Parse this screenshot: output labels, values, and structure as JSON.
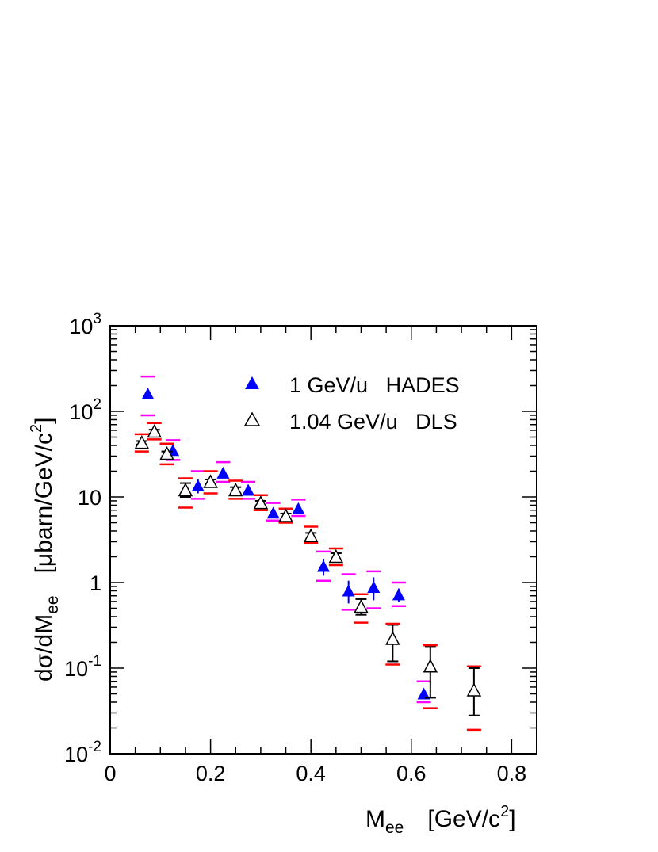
{
  "chart_data": {
    "type": "scatter",
    "title": "",
    "xlabel": "M",
    "xlabel_sub": "ee",
    "xlabel_unit": "[GeV/c",
    "xlabel_unit_sup": "2",
    "xlabel_unit_end": "]",
    "ylabel": "dσ/dM",
    "ylabel_sub": "ee",
    "ylabel_unit": "[μbarn/GeV/c",
    "ylabel_unit_sup": "2",
    "ylabel_unit_end": "]",
    "xlim": [
      0,
      0.85
    ],
    "ylim": [
      0.01,
      1000
    ],
    "yscale": "log",
    "grid": false,
    "legend_position": "top-right",
    "x_ticks": [
      "0",
      "0.2",
      "0.4",
      "0.6",
      "0.8"
    ],
    "x_tick_values": [
      0,
      0.2,
      0.4,
      0.6,
      0.8
    ],
    "y_ticks": [
      {
        "value": 1000,
        "base": "10",
        "sup": "3"
      },
      {
        "value": 100,
        "base": "10",
        "sup": "2"
      },
      {
        "value": 10,
        "base": "10",
        "sup": ""
      },
      {
        "value": 1,
        "base": "1",
        "sup": ""
      },
      {
        "value": 0.1,
        "base": "10",
        "sup": "-1"
      },
      {
        "value": 0.01,
        "base": "10",
        "sup": "-2"
      }
    ],
    "colors": {
      "hades": "#0000ff",
      "dls": "#000000",
      "hades_sys": "#ff00ff",
      "dls_sys": "#ff0000"
    },
    "series": [
      {
        "name": "1 GeV/u   HADES",
        "marker": "filled-triangle",
        "points": [
          {
            "x": 0.075,
            "y": 160,
            "stat_lo": 160,
            "stat_hi": 160,
            "sys_lo": 90,
            "sys_hi": 255
          },
          {
            "x": 0.125,
            "y": 35,
            "stat_lo": 31,
            "stat_hi": 39,
            "sys_lo": 27,
            "sys_hi": 46
          },
          {
            "x": 0.175,
            "y": 13.5,
            "stat_lo": 11,
            "stat_hi": 16,
            "sys_lo": 9.5,
            "sys_hi": 20
          },
          {
            "x": 0.225,
            "y": 19,
            "stat_lo": 17,
            "stat_hi": 21,
            "sys_lo": 15,
            "sys_hi": 25.5
          },
          {
            "x": 0.275,
            "y": 12,
            "stat_lo": 11,
            "stat_hi": 13,
            "sys_lo": 9.5,
            "sys_hi": 15
          },
          {
            "x": 0.325,
            "y": 6.5,
            "stat_lo": 6,
            "stat_hi": 7,
            "sys_lo": 5.3,
            "sys_hi": 8.5
          },
          {
            "x": 0.375,
            "y": 7.3,
            "stat_lo": 6.7,
            "stat_hi": 8,
            "sys_lo": 6,
            "sys_hi": 9.3
          },
          {
            "x": 0.425,
            "y": 1.55,
            "stat_lo": 1.2,
            "stat_hi": 1.9,
            "sys_lo": 1.05,
            "sys_hi": 2.3
          },
          {
            "x": 0.475,
            "y": 0.8,
            "stat_lo": 0.57,
            "stat_hi": 1.05,
            "sys_lo": 0.48,
            "sys_hi": 1.25
          },
          {
            "x": 0.525,
            "y": 0.88,
            "stat_lo": 0.62,
            "stat_hi": 1.15,
            "sys_lo": 0.5,
            "sys_hi": 1.35
          },
          {
            "x": 0.575,
            "y": 0.72,
            "stat_lo": 0.6,
            "stat_hi": 0.85,
            "sys_lo": 0.53,
            "sys_hi": 1.0
          },
          {
            "x": 0.625,
            "y": 0.05,
            "stat_lo": 0.045,
            "stat_hi": 0.055,
            "sys_lo": 0.04,
            "sys_hi": 0.07
          }
        ]
      },
      {
        "name": "1.04 GeV/u   DLS",
        "marker": "open-triangle",
        "points": [
          {
            "x": 0.063,
            "y": 43,
            "stat_lo": 41,
            "stat_hi": 45,
            "sys_lo": 34,
            "sys_hi": 54
          },
          {
            "x": 0.088,
            "y": 58,
            "stat_lo": 55,
            "stat_hi": 61,
            "sys_lo": 47,
            "sys_hi": 73
          },
          {
            "x": 0.113,
            "y": 32,
            "stat_lo": 30,
            "stat_hi": 34,
            "sys_lo": 24,
            "sys_hi": 42
          },
          {
            "x": 0.15,
            "y": 12,
            "stat_lo": 10,
            "stat_hi": 14.5,
            "sys_lo": 7.5,
            "sys_hi": 16.5
          },
          {
            "x": 0.2,
            "y": 15,
            "stat_lo": 14,
            "stat_hi": 16,
            "sys_lo": 11,
            "sys_hi": 20
          },
          {
            "x": 0.25,
            "y": 12,
            "stat_lo": 11,
            "stat_hi": 13,
            "sys_lo": 9.5,
            "sys_hi": 15.5
          },
          {
            "x": 0.3,
            "y": 8.5,
            "stat_lo": 8,
            "stat_hi": 9,
            "sys_lo": 7,
            "sys_hi": 10.5
          },
          {
            "x": 0.35,
            "y": 6,
            "stat_lo": 5.6,
            "stat_hi": 6.4,
            "sys_lo": 5,
            "sys_hi": 7.3
          },
          {
            "x": 0.4,
            "y": 3.5,
            "stat_lo": 3.2,
            "stat_hi": 3.8,
            "sys_lo": 2.9,
            "sys_hi": 4.5
          },
          {
            "x": 0.45,
            "y": 2,
            "stat_lo": 1.8,
            "stat_hi": 2.2,
            "sys_lo": 1.6,
            "sys_hi": 2.5
          },
          {
            "x": 0.5,
            "y": 0.52,
            "stat_lo": 0.42,
            "stat_hi": 0.64,
            "sys_lo": 0.34,
            "sys_hi": 0.73
          },
          {
            "x": 0.563,
            "y": 0.22,
            "stat_lo": 0.12,
            "stat_hi": 0.32,
            "sys_lo": 0.11,
            "sys_hi": 0.33
          },
          {
            "x": 0.638,
            "y": 0.105,
            "stat_lo": 0.045,
            "stat_hi": 0.18,
            "sys_lo": 0.034,
            "sys_hi": 0.185
          },
          {
            "x": 0.725,
            "y": 0.055,
            "stat_lo": 0.028,
            "stat_hi": 0.1,
            "sys_lo": 0.019,
            "sys_hi": 0.105
          }
        ]
      }
    ]
  }
}
